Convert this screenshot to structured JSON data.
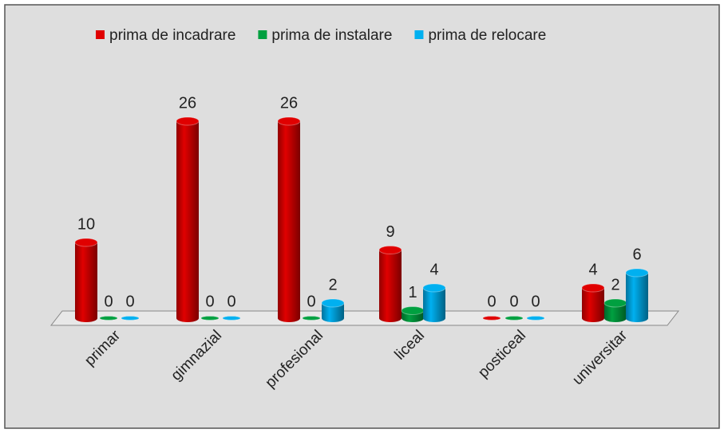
{
  "chart_data": {
    "type": "bar3d",
    "categories": [
      "primar",
      "gimnazial",
      "profesional",
      "liceal",
      "posticeal",
      "universitar"
    ],
    "series": [
      {
        "name": "prima de incadrare",
        "color": "#e00000",
        "values": [
          10,
          26,
          26,
          9,
          0,
          4
        ]
      },
      {
        "name": "prima de instalare",
        "color": "#00a040",
        "values": [
          0,
          0,
          0,
          1,
          0,
          2
        ]
      },
      {
        "name": "prima de relocare",
        "color": "#00b0f0",
        "values": [
          0,
          0,
          2,
          4,
          0,
          6
        ]
      }
    ],
    "legend": "top"
  }
}
